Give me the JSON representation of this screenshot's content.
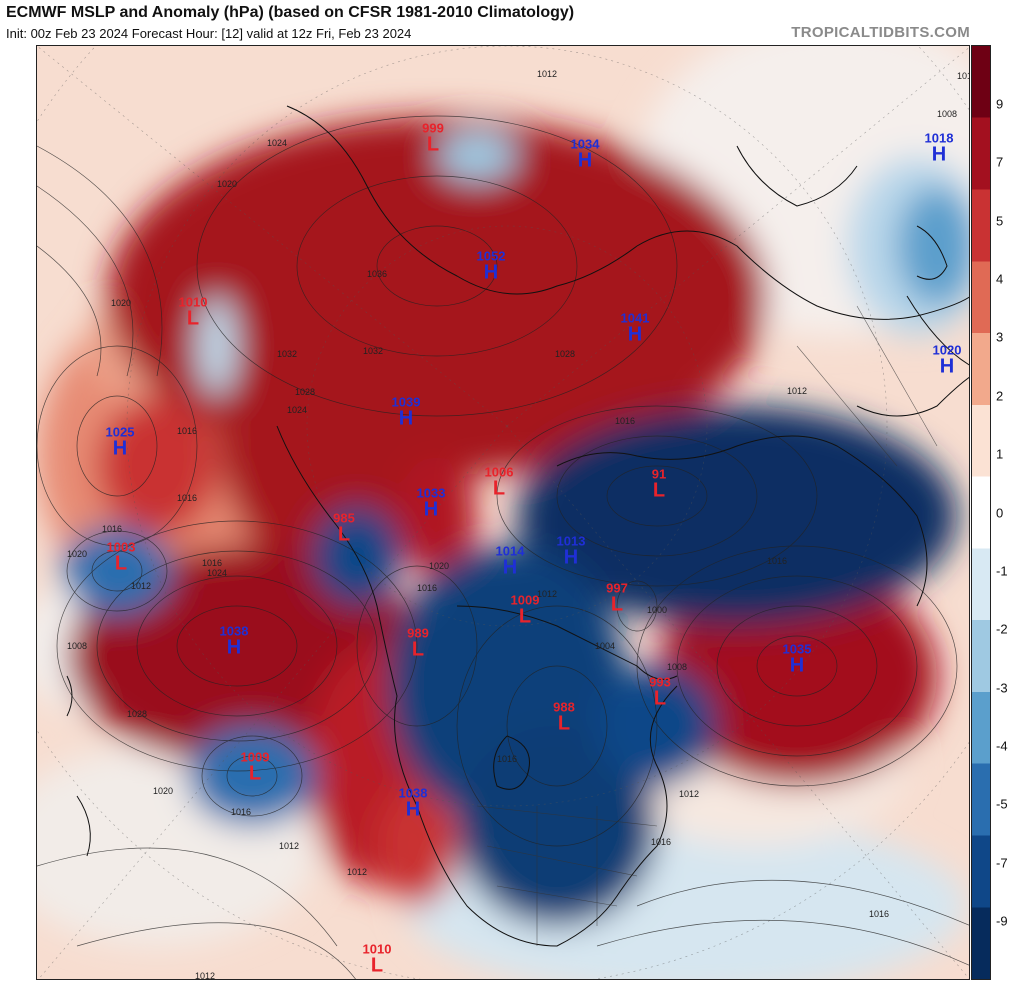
{
  "header": {
    "title": "ECMWF MSLP and Anomaly (hPa) (based on CFSR 1981-2010 Climatology)",
    "subtitle": "Init: 00z Feb 23 2024   Forecast Hour: [12]   valid at 12z Fri, Feb 23 2024",
    "brand": "TROPICALTIDBITS.COM"
  },
  "colorbar": {
    "ticks": [
      "9",
      "7",
      "5",
      "3",
      "1",
      "-1",
      "-3",
      "-5",
      "-7",
      "-9"
    ],
    "ticks_even": [
      "4",
      "2",
      "0",
      "-2",
      "-4"
    ],
    "colors": [
      "#6e0014",
      "#a3101f",
      "#c93233",
      "#e06a55",
      "#f2a98c",
      "#fbe2d4",
      "#ffffff",
      "#d8e9f3",
      "#9fc9e2",
      "#5b9fcc",
      "#2a6eaf",
      "#0f4788",
      "#062b5c"
    ]
  },
  "colors": {
    "positive_anomaly": "#b51b24",
    "negative_anomaly": "#0b3e78",
    "high_label": "#1f2fd6",
    "low_label": "#e8232b"
  },
  "systems": [
    {
      "type": "L",
      "value": "999"
    },
    {
      "type": "H",
      "value": "1034"
    },
    {
      "type": "H",
      "value": "1018"
    },
    {
      "type": "H",
      "value": "1052"
    },
    {
      "type": "L",
      "value": "1010"
    },
    {
      "type": "H",
      "value": "1041"
    },
    {
      "type": "H",
      "value": "1020"
    },
    {
      "type": "H",
      "value": "1025"
    },
    {
      "type": "H",
      "value": "1039"
    },
    {
      "type": "L",
      "value": "1006"
    },
    {
      "type": "H",
      "value": "1033"
    },
    {
      "type": "L",
      "value": "985"
    },
    {
      "type": "L",
      "value": "1003"
    },
    {
      "type": "H",
      "value": "1014"
    },
    {
      "type": "H",
      "value": "1013"
    },
    {
      "type": "L",
      "value": "997"
    },
    {
      "type": "L",
      "value": "1009"
    },
    {
      "type": "L",
      "value": "989"
    },
    {
      "type": "H",
      "value": "1038"
    },
    {
      "type": "H",
      "value": "1035"
    },
    {
      "type": "L",
      "value": "993"
    },
    {
      "type": "L",
      "value": "988"
    },
    {
      "type": "L",
      "value": "1009"
    },
    {
      "type": "H",
      "value": "1038"
    },
    {
      "type": "L",
      "value": "1010"
    },
    {
      "type": "L",
      "value": "91"
    }
  ],
  "isobar_labels": [
    "1012",
    "1012",
    "1008",
    "1024",
    "1020",
    "1020",
    "1016",
    "1016",
    "1032",
    "1028",
    "1024",
    "1036",
    "1032",
    "1028",
    "1016",
    "1012",
    "1016",
    "1020",
    "1016",
    "1012",
    "1008",
    "1020",
    "1016",
    "1024",
    "1028",
    "1016",
    "1012",
    "1020",
    "1016",
    "1008",
    "1016",
    "1012",
    "1004",
    "1000",
    "1012",
    "1016",
    "1016",
    "1012",
    "1012"
  ]
}
